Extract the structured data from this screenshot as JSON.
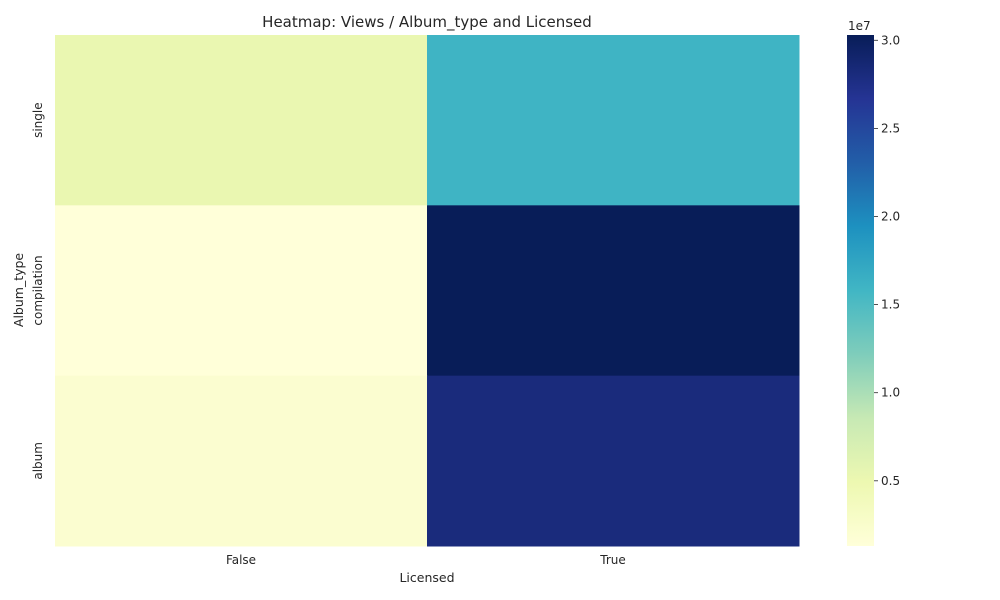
{
  "chart_data": {
    "type": "heatmap",
    "title": "Heatmap: Views / Album_type and Licensed",
    "xlabel": "Licensed",
    "ylabel": "Album_type",
    "x_categories": [
      "False",
      "True"
    ],
    "y_categories": [
      "single",
      "compilation",
      "album"
    ],
    "values": [
      [
        5200000,
        16000000
      ],
      [
        1300000,
        30300000
      ],
      [
        2100000,
        28100000
      ]
    ],
    "colormap": "YlGnBu",
    "colorbar": {
      "range": [
        1300000,
        30300000
      ],
      "ticks": [
        5000000,
        10000000,
        15000000,
        20000000,
        25000000,
        30000000
      ],
      "tick_labels": [
        "0.5",
        "1.0",
        "1.5",
        "2.0",
        "2.5",
        "3.0"
      ],
      "offset_label": "1e7"
    },
    "grid": false
  }
}
